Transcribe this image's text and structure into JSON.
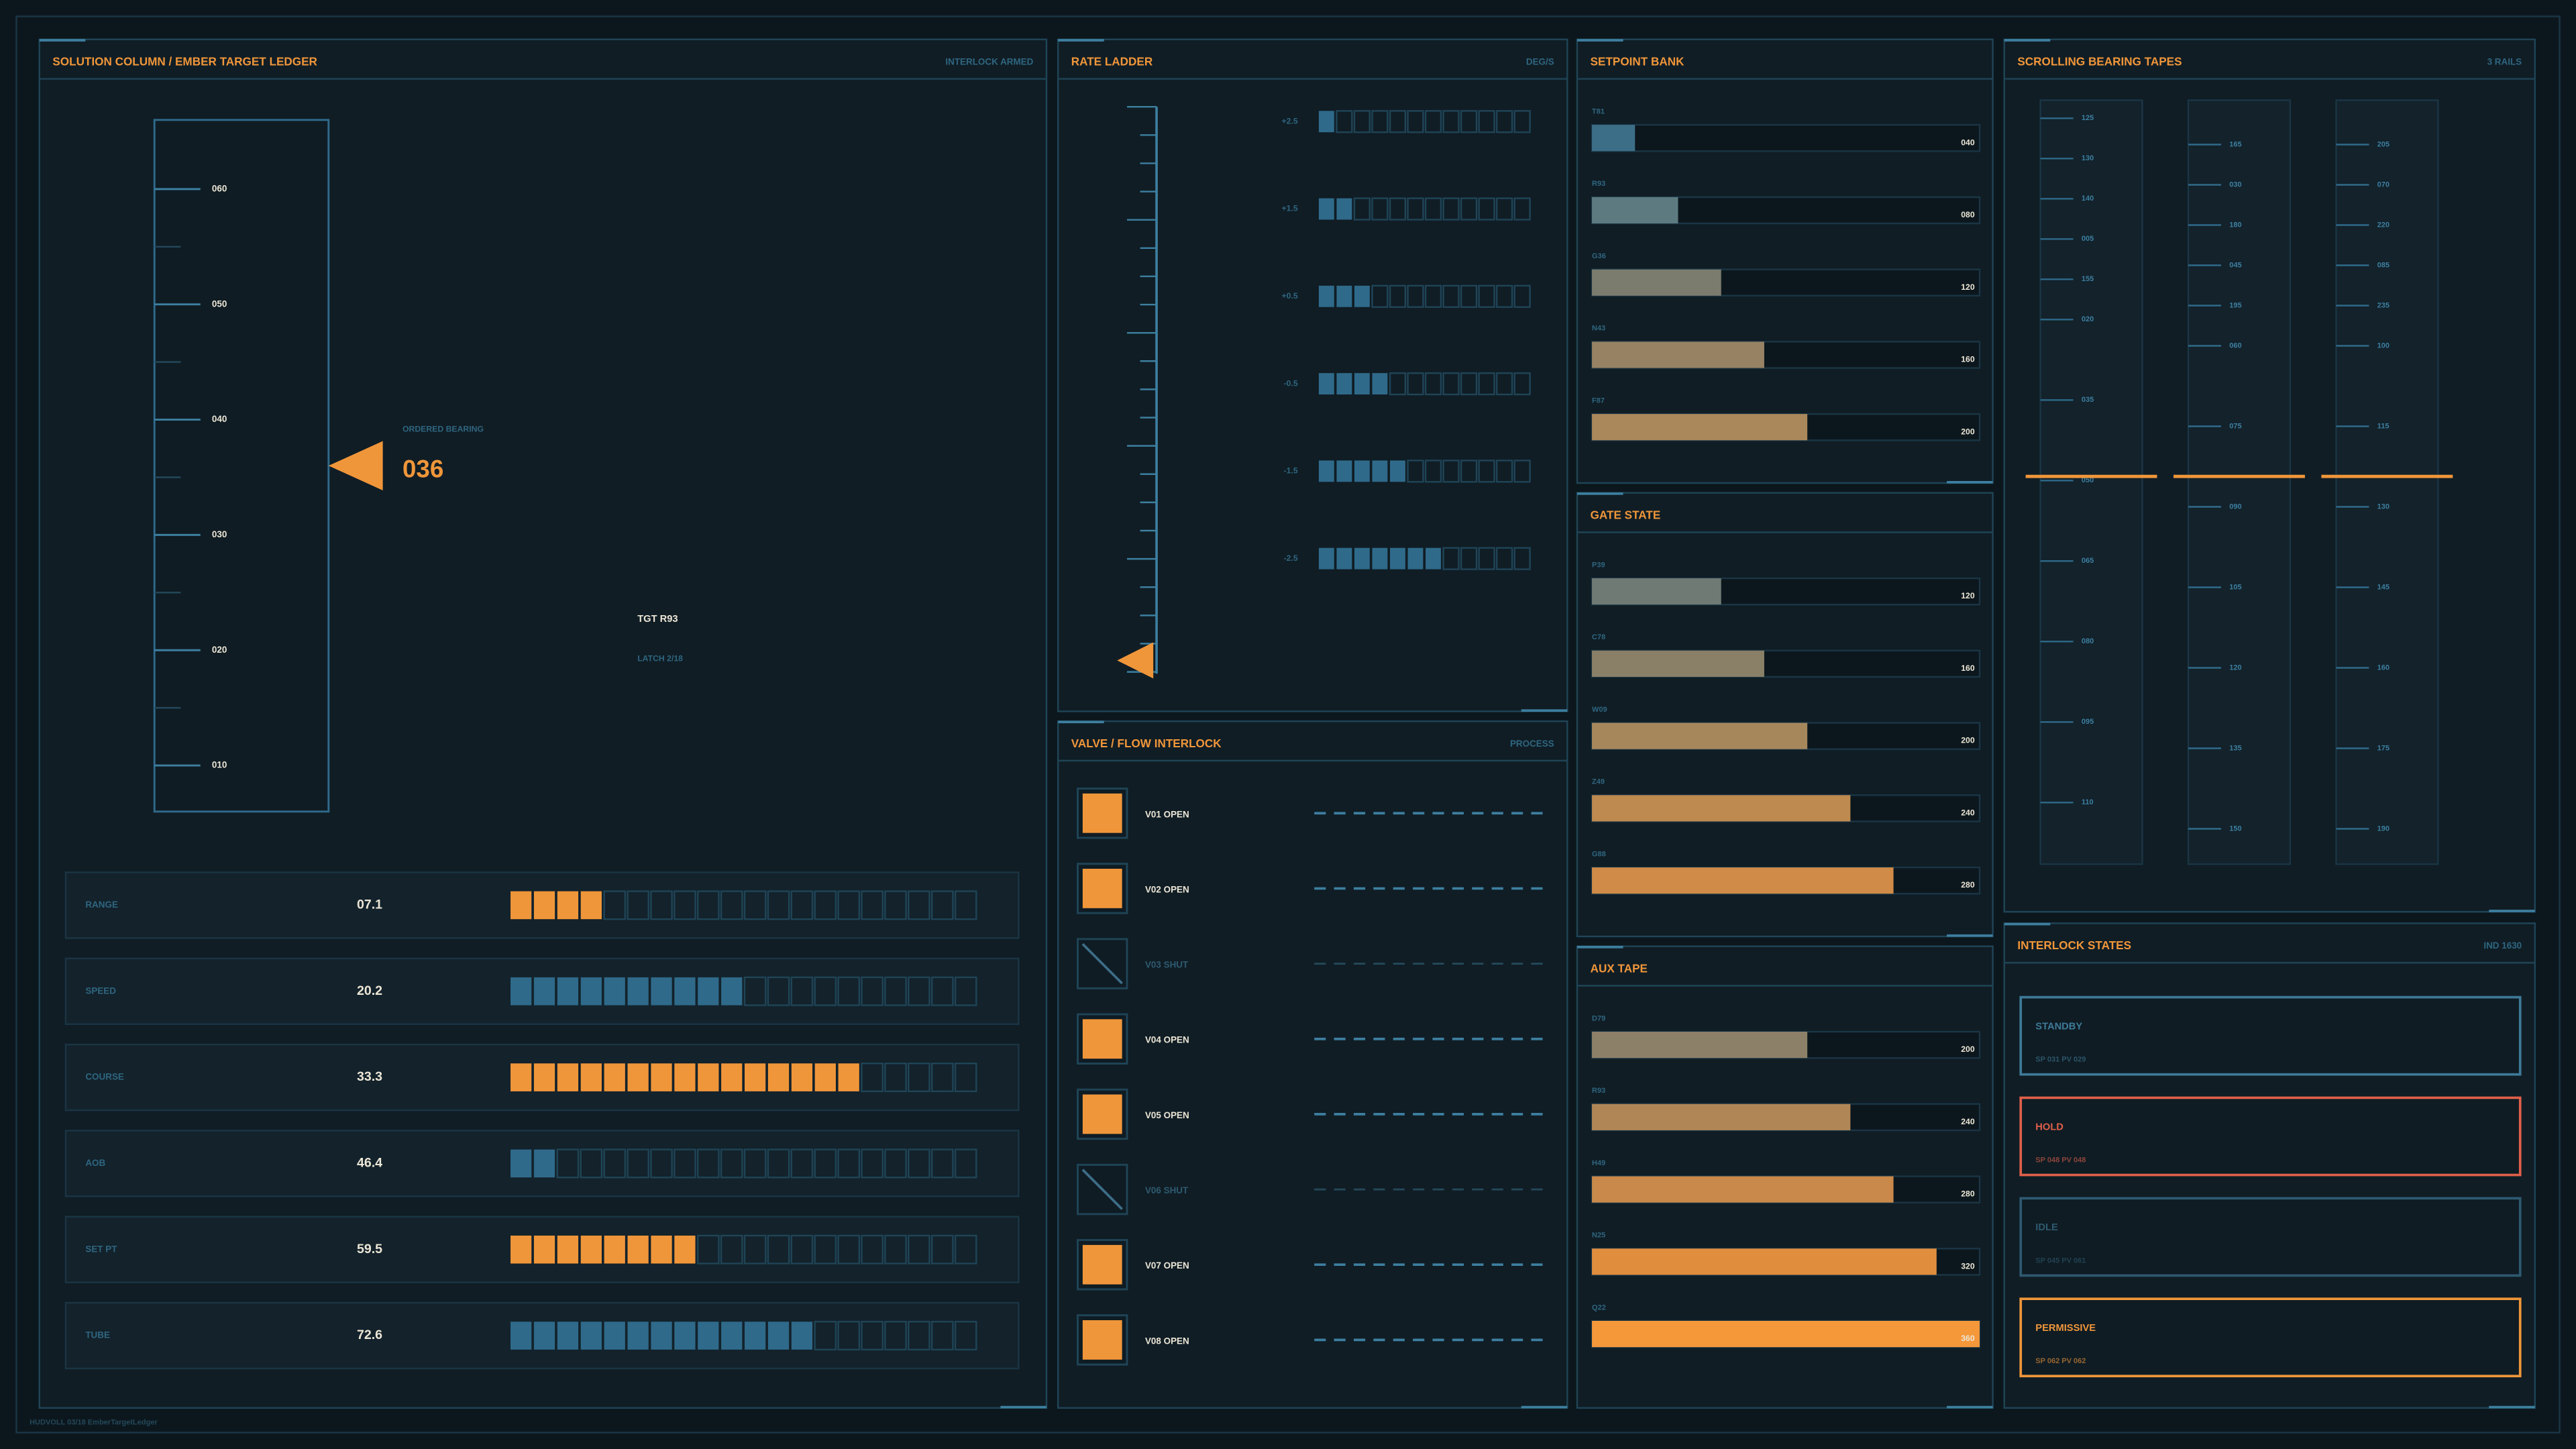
{
  "footer": "HUDVOLL 03/18 EmberTargetLedger",
  "solution": {
    "title": "SOLUTION COLUMN / EMBER TARGET LEDGER",
    "status": "INTERLOCK ARMED",
    "tape": {
      "ylim": [
        6,
        66
      ],
      "ticks": [
        {
          "value": 60,
          "label": "060"
        },
        {
          "value": 50,
          "label": "050"
        },
        {
          "value": 40,
          "label": "040"
        },
        {
          "value": 30,
          "label": "030"
        },
        {
          "value": 20,
          "label": "020"
        },
        {
          "value": 10,
          "label": "010"
        }
      ]
    },
    "ordered_bearing": {
      "label": "ORDERED BEARING",
      "value": 36,
      "value_label": "036"
    },
    "target": "TGT R93",
    "latch": "LATCH 2/18",
    "rows": [
      {
        "label": "RANGE",
        "value": "07.1",
        "segments": 20,
        "filled": 4,
        "color": "#f0963a"
      },
      {
        "label": "SPEED",
        "value": "20.2",
        "segments": 20,
        "filled": 10,
        "color": "#2f6a8a"
      },
      {
        "label": "COURSE",
        "value": "33.3",
        "segments": 20,
        "filled": 15,
        "color": "#f0963a"
      },
      {
        "label": "AOB",
        "value": "46.4",
        "segments": 20,
        "filled": 2,
        "color": "#2f6a8a"
      },
      {
        "label": "SET PT",
        "value": "59.5",
        "segments": 20,
        "filled": 8,
        "color": "#f0963a"
      },
      {
        "label": "TUBE",
        "value": "72.6",
        "segments": 20,
        "filled": 13,
        "color": "#2f6a8a"
      }
    ]
  },
  "rate_ladder": {
    "title": "RATE LADDER",
    "unit": "DEG/S",
    "rows": [
      {
        "label": "+2.5",
        "segments": 12,
        "filled": 1
      },
      {
        "label": "+1.5",
        "segments": 12,
        "filled": 2
      },
      {
        "label": "+0.5",
        "segments": 12,
        "filled": 3
      },
      {
        "label": "-0.5",
        "segments": 12,
        "filled": 4
      },
      {
        "label": "-1.5",
        "segments": 12,
        "filled": 5
      },
      {
        "label": "-2.5",
        "segments": 12,
        "filled": 7
      }
    ]
  },
  "valves": {
    "title": "VALVE / FLOW INTERLOCK",
    "status": "PROCESS",
    "items": [
      {
        "label": "V01 OPEN",
        "open": true
      },
      {
        "label": "V02 OPEN",
        "open": true
      },
      {
        "label": "V03 SHUT",
        "open": false
      },
      {
        "label": "V04 OPEN",
        "open": true
      },
      {
        "label": "V05 OPEN",
        "open": true
      },
      {
        "label": "V06 SHUT",
        "open": false
      },
      {
        "label": "V07 OPEN",
        "open": true
      },
      {
        "label": "V08 OPEN",
        "open": true
      }
    ]
  },
  "bar_panels": [
    {
      "title": "SETPOINT BANK",
      "xlim": [
        0,
        360
      ],
      "items": [
        {
          "label": "T81",
          "value": 40,
          "value_label": "040",
          "color": "#3d6e88"
        },
        {
          "label": "R93",
          "value": 80,
          "value_label": "080",
          "color": "#5d7a80"
        },
        {
          "label": "G36",
          "value": 120,
          "value_label": "120",
          "color": "#7b7c6e"
        },
        {
          "label": "N43",
          "value": 160,
          "value_label": "160",
          "color": "#978264"
        },
        {
          "label": "F87",
          "value": 200,
          "value_label": "200",
          "color": "#ab875c"
        }
      ]
    },
    {
      "title": "GATE STATE",
      "xlim": [
        0,
        360
      ],
      "items": [
        {
          "label": "P39",
          "value": 120,
          "value_label": "120",
          "color": "#6f7a74"
        },
        {
          "label": "C78",
          "value": 160,
          "value_label": "160",
          "color": "#8a8068"
        },
        {
          "label": "W09",
          "value": 200,
          "value_label": "200",
          "color": "#a6875c"
        },
        {
          "label": "Z49",
          "value": 240,
          "value_label": "240",
          "color": "#be8a50"
        },
        {
          "label": "G88",
          "value": 280,
          "value_label": "280",
          "color": "#cf8b47"
        }
      ]
    },
    {
      "title": "AUX TAPE",
      "xlim": [
        0,
        360
      ],
      "items": [
        {
          "label": "D79",
          "value": 200,
          "value_label": "200",
          "color": "#8d8068"
        },
        {
          "label": "R93",
          "value": 240,
          "value_label": "240",
          "color": "#b08656"
        },
        {
          "label": "H49",
          "value": 280,
          "value_label": "280",
          "color": "#c8894b"
        },
        {
          "label": "N25",
          "value": 320,
          "value_label": "320",
          "color": "#e08e3e"
        },
        {
          "label": "Q22",
          "value": 360,
          "value_label": "360",
          "color": "#f5983a"
        }
      ]
    }
  ],
  "bearing_tapes": {
    "title": "SCROLLING BEARING TAPES",
    "status": "3 RAILS",
    "rails": [
      [
        "125",
        "130",
        "140",
        "005",
        "155",
        "020",
        "035",
        "050",
        "065",
        "080",
        "095",
        "110"
      ],
      [
        "165",
        "030",
        "180",
        "045",
        "195",
        "060",
        "075",
        "090",
        "105",
        "120",
        "135",
        "150"
      ],
      [
        "205",
        "070",
        "220",
        "085",
        "235",
        "100",
        "115",
        "130",
        "145",
        "160",
        "175",
        "190"
      ]
    ]
  },
  "interlock_states": {
    "title": "INTERLOCK STATES",
    "status": "IND 1630",
    "items": [
      {
        "label": "STANDBY",
        "detail": "SP 031  PV 029",
        "color": "#3e7a98"
      },
      {
        "label": "HOLD",
        "detail": "SP 048  PV 048",
        "color": "#e0604a"
      },
      {
        "label": "IDLE",
        "detail": "SP 045  PV 061",
        "color": "#2e5a70"
      },
      {
        "label": "PERMISSIVE",
        "detail": "SP 062  PV 062",
        "color": "#f0963a"
      }
    ]
  }
}
